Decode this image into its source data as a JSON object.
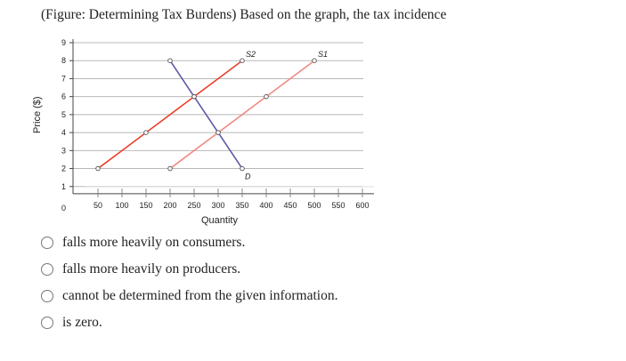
{
  "question": {
    "text": "(Figure: Determining Tax Burdens) Based on the graph, the tax incidence"
  },
  "options": [
    {
      "label": "falls more heavily on consumers."
    },
    {
      "label": "falls more heavily on producers."
    },
    {
      "label": "cannot be determined from the given information."
    },
    {
      "label": "is zero."
    }
  ],
  "chart_data": {
    "type": "line",
    "xlabel": "Quantity",
    "ylabel": "Price ($)",
    "xlim": [
      0,
      600
    ],
    "ylim": [
      0,
      9
    ],
    "x_ticks": [
      50,
      100,
      150,
      200,
      250,
      300,
      350,
      400,
      450,
      500,
      550,
      600
    ],
    "y_ticks": [
      0,
      1,
      2,
      3,
      4,
      5,
      6,
      7,
      8,
      9
    ],
    "grid": true,
    "colors": {
      "S2": "#e8402a",
      "S1": "#f08a80",
      "D": "#5a5aa8"
    },
    "series": [
      {
        "name": "S2",
        "x": [
          50,
          150,
          250,
          350
        ],
        "y": [
          2,
          4,
          6,
          8
        ]
      },
      {
        "name": "S1",
        "x": [
          200,
          300,
          400,
          500
        ],
        "y": [
          2,
          4,
          6,
          8
        ]
      },
      {
        "name": "D",
        "x": [
          200,
          250,
          300,
          350
        ],
        "y": [
          8,
          6,
          4,
          2
        ]
      }
    ]
  }
}
